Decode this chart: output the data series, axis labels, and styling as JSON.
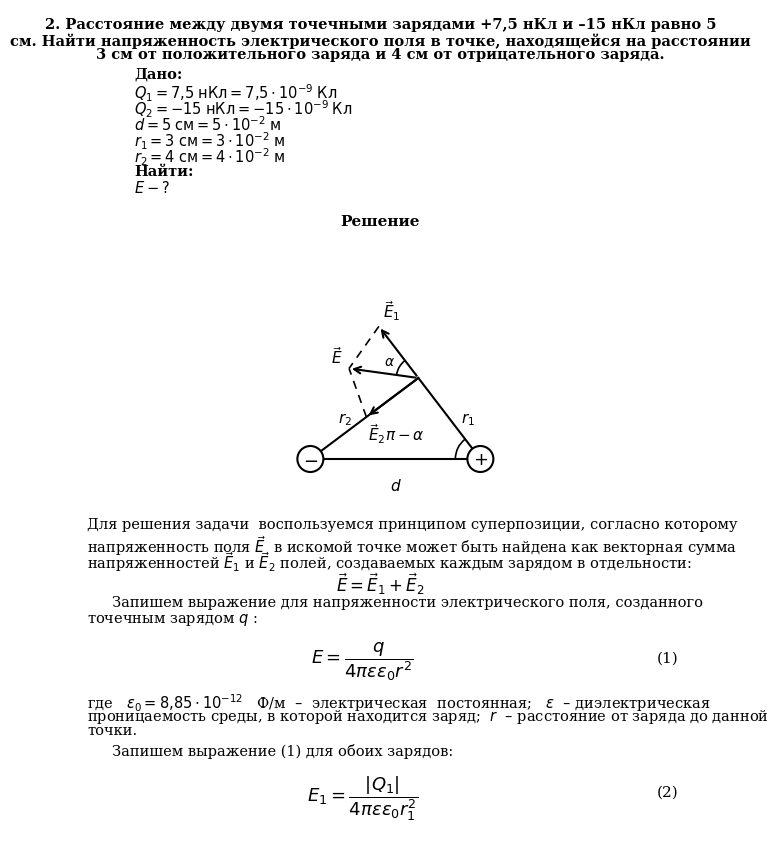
{
  "bg_color": "#ffffff",
  "text_color": "#000000",
  "title_line1": "2. Расстояние между двумя точечными зарядами +7,5 нКл и –15 нКл равно 5",
  "title_line2": "см. Найти напряженность электрического поля в точке, находящейся на расстоянии",
  "title_line3": "3 см от положительного заряда и 4 см от отрицательного заряда.",
  "dano": "Дано:",
  "nayti": "Найти:",
  "reshenie": "Решение",
  "text_p1_l1": "Для решения задачи  воспользуемся принципом суперпозиции, согласно которому",
  "text_p1_l3": "полей, создаваемых каждым зарядом в отдельности:",
  "text_p2_l1": "Запишем выражение для напряженности электрического поля, созданного",
  "text_p2_l2": "точечным зарядом $q$ :",
  "text_p3_l1": "где   $\\varepsilon_0 = 8{,}85\\cdot10^{-12}$   Ф/м  –  электрическая  постоянная;   $\\varepsilon$  – диэлектрическая",
  "text_p3_l2": "проницаемость среды, в которой находится заряд;  $r$  – расстояние от заряда до данной",
  "text_p3_l3": "точки.",
  "text_p4": "Запишем выражение (1) для обоих зарядов:"
}
